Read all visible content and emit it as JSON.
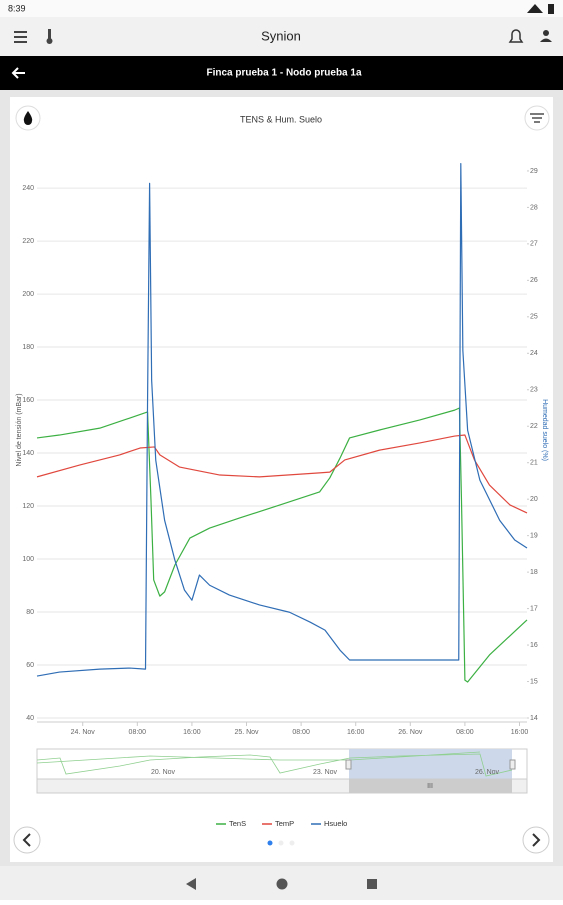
{
  "status_bar": {
    "time": "8:39"
  },
  "app_bar": {
    "title": "Synion"
  },
  "header": {
    "title": "Finca prueba 1 - Nodo prueba 1a"
  },
  "chart_data": {
    "type": "line",
    "title": "TENS & Hum. Suelo",
    "y_label": "Nivel de tensión (mBar)",
    "y2_label": "Humedad suelo (%)",
    "xlim": [
      -6.7,
      65.1
    ],
    "xticks": [
      {
        "value": 0,
        "label": "24. Nov"
      },
      {
        "value": 8,
        "label": "08:00"
      },
      {
        "value": 16,
        "label": "16:00"
      },
      {
        "value": 24,
        "label": "25. Nov"
      },
      {
        "value": 32,
        "label": "08:00"
      },
      {
        "value": 40,
        "label": "16:00"
      },
      {
        "value": 48,
        "label": "26. Nov"
      },
      {
        "value": 56,
        "label": "08:00"
      },
      {
        "value": 64,
        "label": "16:00"
      }
    ],
    "ylim": [
      40,
      250.6
    ],
    "yticks": [
      40,
      60,
      80,
      100,
      120,
      140,
      160,
      180,
      200,
      220,
      240
    ],
    "y2lim": [
      14,
      29.3
    ],
    "y2ticks": [
      14,
      15,
      16,
      17,
      18,
      19,
      20,
      21,
      22,
      23,
      24,
      25,
      26,
      27,
      28,
      29
    ],
    "grid": true,
    "legend": "bottom",
    "series": [
      {
        "name": "TenS",
        "color": "#3cb043",
        "x": [
          -6.7,
          -3.4,
          2.5,
          6.9,
          9.5,
          10.0,
          10.4,
          11.3,
          12.0,
          13.5,
          15.7,
          18.6,
          23.0,
          28.9,
          34.7,
          36.2,
          37.7,
          39.1,
          43.5,
          49.4,
          54.5,
          55.2,
          55.5,
          56.0,
          56.4,
          59.6,
          65.1
        ],
        "values": [
          145.7,
          146.8,
          149.4,
          153.2,
          155.5,
          122.3,
          92.1,
          86,
          87.6,
          97.7,
          107.9,
          111.7,
          115.5,
          120.4,
          125.3,
          130.6,
          138.1,
          145.7,
          148.7,
          152.5,
          156.2,
          157,
          122.3,
          54.3,
          53.6,
          63.8,
          77
        ]
      },
      {
        "name": "TemP",
        "color": "#e0483e",
        "x": [
          -6.7,
          -0.4,
          5.4,
          8.4,
          10.5,
          11.3,
          14.2,
          20.1,
          25.9,
          34.7,
          36.2,
          38.4,
          43.5,
          49.4,
          54.5,
          56.0,
          57.4,
          59.6,
          62.6,
          65.1
        ],
        "values": [
          131,
          135.5,
          139.3,
          141.9,
          142.3,
          139.3,
          134.7,
          131.7,
          131,
          132.5,
          132.8,
          137.4,
          141.1,
          143.8,
          146.4,
          146.8,
          137.4,
          127.9,
          120.4,
          117.4
        ]
      },
      {
        "name": "Hsuelo",
        "color": "#2f6db5",
        "axis": "y2",
        "x": [
          -6.7,
          -3.4,
          2.5,
          6.9,
          9.2,
          9.5,
          9.8,
          10.1,
          10.7,
          12.0,
          13.5,
          14.9,
          16.0,
          17.1,
          18.6,
          21.5,
          25.9,
          30.3,
          33.3,
          35.5,
          37.7,
          39.1,
          40.6,
          46.4,
          54.5,
          55.1,
          55.4,
          55.7,
          56.4,
          58.2,
          61.1,
          63.3,
          65.1
        ],
        "values": [
          15.15,
          15.26,
          15.34,
          15.37,
          15.34,
          22.7,
          28.66,
          23.26,
          21.07,
          19.42,
          18.33,
          17.51,
          17.23,
          17.92,
          17.64,
          17.37,
          17.1,
          16.9,
          16.63,
          16.41,
          15.86,
          15.59,
          15.59,
          15.59,
          15.59,
          15.59,
          29.2,
          24.08,
          21.89,
          20.52,
          19.42,
          18.88,
          18.66
        ]
      }
    ]
  },
  "navigator": {
    "labels": [
      "20. Nov",
      "23. Nov",
      "26. Nov"
    ],
    "handle": "III"
  }
}
